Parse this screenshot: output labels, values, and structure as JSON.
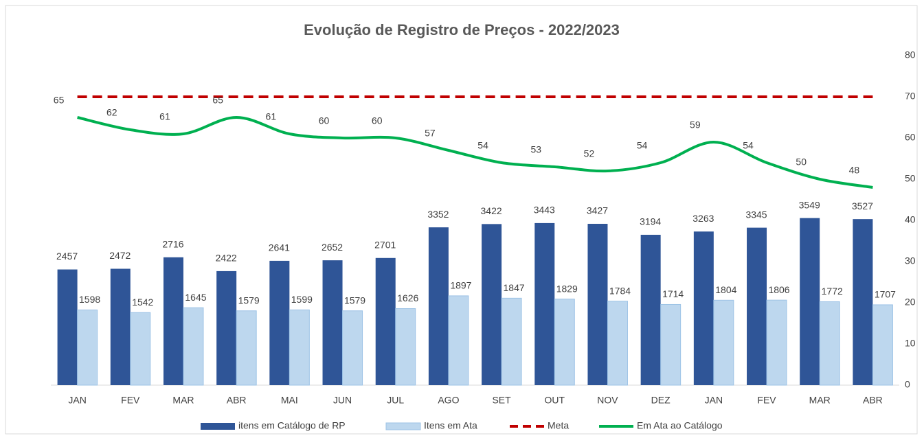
{
  "chart_data": {
    "type": "bar",
    "title": "Evolução de Registro de Preços - 2022/2023",
    "categories": [
      "JAN",
      "FEV",
      "MAR",
      "ABR",
      "MAI",
      "JUN",
      "JUL",
      "AGO",
      "SET",
      "OUT",
      "NOV",
      "DEZ",
      "JAN",
      "FEV",
      "MAR",
      "ABR"
    ],
    "ylim": [
      0,
      7000
    ],
    "y2lim": [
      0,
      80
    ],
    "y2ticks": [
      0,
      10,
      20,
      30,
      40,
      50,
      60,
      70,
      80
    ],
    "legend": "bottom",
    "series": [
      {
        "name": "itens em Catálogo de RP",
        "type": "bar",
        "color": "#2f5597",
        "values": [
          2457,
          2472,
          2716,
          2422,
          2641,
          2652,
          2701,
          3352,
          3422,
          3443,
          3427,
          3194,
          3263,
          3345,
          3549,
          3527
        ]
      },
      {
        "name": "Itens em Ata",
        "type": "bar",
        "color": "#bdd7ee",
        "values": [
          1598,
          1542,
          1645,
          1579,
          1599,
          1579,
          1626,
          1897,
          1847,
          1829,
          1784,
          1714,
          1804,
          1806,
          1772,
          1707
        ]
      },
      {
        "name": "Meta",
        "type": "dashed-line",
        "axis": "y2",
        "color": "#c00000",
        "values": [
          70,
          70,
          70,
          70,
          70,
          70,
          70,
          70,
          70,
          70,
          70,
          70,
          70,
          70,
          70,
          70
        ]
      },
      {
        "name": "Em Ata ao Catálogo",
        "type": "line",
        "axis": "y2",
        "color": "#00b050",
        "labels": true,
        "values": [
          65,
          62,
          61,
          65,
          61,
          60,
          60,
          57,
          54,
          53,
          52,
          54,
          59,
          54,
          50,
          48
        ]
      }
    ]
  }
}
